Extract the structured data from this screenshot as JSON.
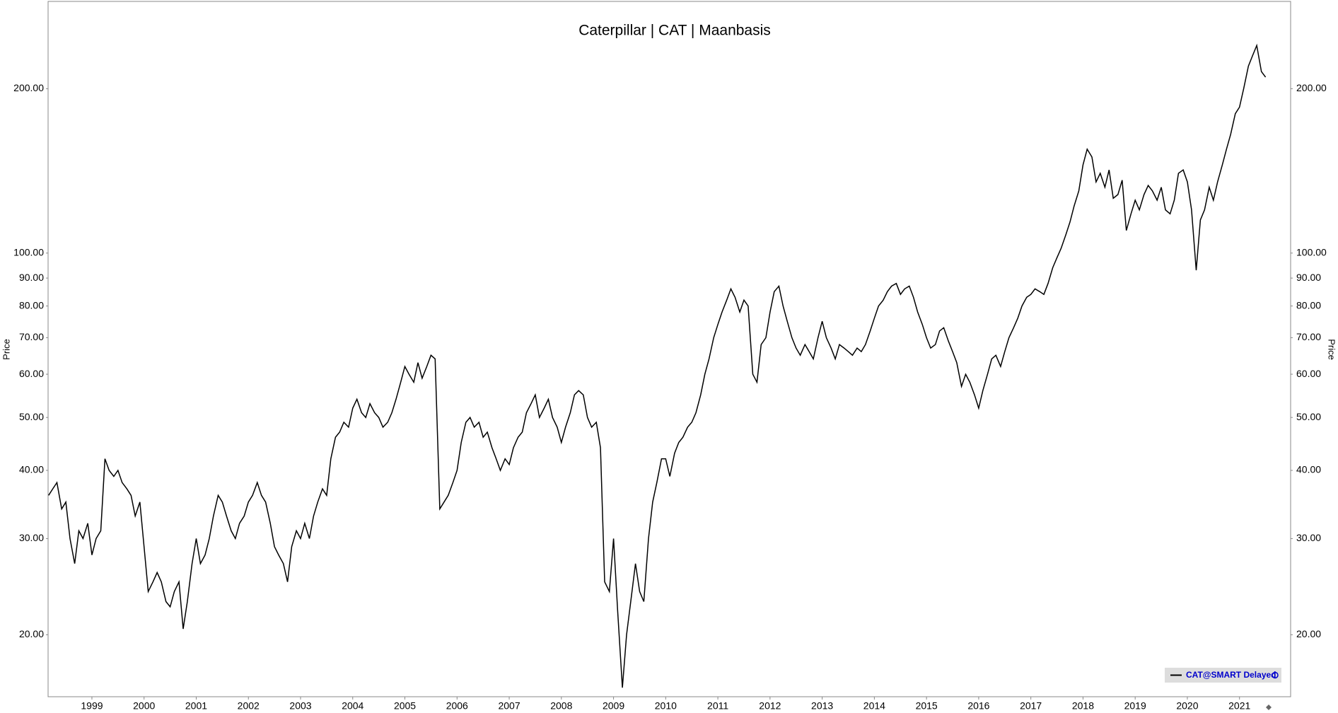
{
  "chart_data": {
    "type": "line",
    "title": "Caterpillar | CAT | Maanbasis",
    "ylabel": "Price",
    "y2label": "Price",
    "log_y": true,
    "grid": false,
    "legend": "lower right",
    "xlim": [
      1998.16,
      2021.98
    ],
    "xticks": [
      1999,
      2000,
      2001,
      2002,
      2003,
      2004,
      2005,
      2006,
      2007,
      2008,
      2009,
      2010,
      2011,
      2012,
      2013,
      2014,
      2015,
      2016,
      2017,
      2018,
      2019,
      2020,
      2021
    ],
    "ylim": [
      15.4,
      289
    ],
    "yticks": [
      {
        "value": 20,
        "label": "20.00"
      },
      {
        "value": 30,
        "label": "30.00"
      },
      {
        "value": 40,
        "label": "40.00"
      },
      {
        "value": 50,
        "label": "50.00"
      },
      {
        "value": 60,
        "label": "60.00"
      },
      {
        "value": 70,
        "label": "70.00"
      },
      {
        "value": 80,
        "label": "80.00"
      },
      {
        "value": 90,
        "label": "90.00"
      },
      {
        "value": 100,
        "label": "100.00"
      },
      {
        "value": 200,
        "label": "200.00"
      }
    ],
    "x": [
      1998.17,
      1998.25,
      1998.33,
      1998.42,
      1998.5,
      1998.58,
      1998.67,
      1998.75,
      1998.83,
      1998.92,
      1999,
      1999.08,
      1999.17,
      1999.25,
      1999.33,
      1999.42,
      1999.5,
      1999.58,
      1999.67,
      1999.75,
      1999.83,
      1999.92,
      2000,
      2000.08,
      2000.17,
      2000.25,
      2000.33,
      2000.42,
      2000.5,
      2000.58,
      2000.67,
      2000.75,
      2000.83,
      2000.92,
      2001,
      2001.08,
      2001.17,
      2001.25,
      2001.33,
      2001.42,
      2001.5,
      2001.58,
      2001.67,
      2001.75,
      2001.83,
      2001.92,
      2002,
      2002.08,
      2002.17,
      2002.25,
      2002.33,
      2002.42,
      2002.5,
      2002.58,
      2002.67,
      2002.75,
      2002.83,
      2002.92,
      2003,
      2003.08,
      2003.17,
      2003.25,
      2003.33,
      2003.42,
      2003.5,
      2003.58,
      2003.67,
      2003.75,
      2003.83,
      2003.92,
      2004,
      2004.08,
      2004.17,
      2004.25,
      2004.33,
      2004.42,
      2004.5,
      2004.58,
      2004.67,
      2004.75,
      2004.83,
      2004.92,
      2005,
      2005.08,
      2005.17,
      2005.25,
      2005.33,
      2005.42,
      2005.5,
      2005.58,
      2005.67,
      2005.75,
      2005.83,
      2005.92,
      2006,
      2006.08,
      2006.17,
      2006.25,
      2006.33,
      2006.42,
      2006.5,
      2006.58,
      2006.67,
      2006.75,
      2006.83,
      2006.92,
      2007,
      2007.08,
      2007.17,
      2007.25,
      2007.33,
      2007.42,
      2007.5,
      2007.58,
      2007.67,
      2007.75,
      2007.83,
      2007.92,
      2008,
      2008.08,
      2008.17,
      2008.25,
      2008.33,
      2008.42,
      2008.5,
      2008.58,
      2008.67,
      2008.75,
      2008.83,
      2008.92,
      2009,
      2009.08,
      2009.17,
      2009.25,
      2009.33,
      2009.42,
      2009.5,
      2009.58,
      2009.67,
      2009.75,
      2009.83,
      2009.92,
      2010,
      2010.08,
      2010.17,
      2010.25,
      2010.33,
      2010.42,
      2010.5,
      2010.58,
      2010.67,
      2010.75,
      2010.83,
      2010.92,
      2011,
      2011.08,
      2011.17,
      2011.25,
      2011.33,
      2011.42,
      2011.5,
      2011.58,
      2011.67,
      2011.75,
      2011.83,
      2011.92,
      2012,
      2012.08,
      2012.17,
      2012.25,
      2012.33,
      2012.42,
      2012.5,
      2012.58,
      2012.67,
      2012.75,
      2012.83,
      2012.92,
      2013,
      2013.08,
      2013.17,
      2013.25,
      2013.33,
      2013.42,
      2013.5,
      2013.58,
      2013.67,
      2013.75,
      2013.83,
      2013.92,
      2014,
      2014.08,
      2014.17,
      2014.25,
      2014.33,
      2014.42,
      2014.5,
      2014.58,
      2014.67,
      2014.75,
      2014.83,
      2014.92,
      2015,
      2015.08,
      2015.17,
      2015.25,
      2015.33,
      2015.42,
      2015.5,
      2015.58,
      2015.67,
      2015.75,
      2015.83,
      2015.92,
      2016,
      2016.08,
      2016.17,
      2016.25,
      2016.33,
      2016.42,
      2016.5,
      2016.58,
      2016.67,
      2016.75,
      2016.83,
      2016.92,
      2017,
      2017.08,
      2017.17,
      2017.25,
      2017.33,
      2017.42,
      2017.5,
      2017.58,
      2017.67,
      2017.75,
      2017.83,
      2017.92,
      2018,
      2018.08,
      2018.17,
      2018.25,
      2018.33,
      2018.42,
      2018.5,
      2018.58,
      2018.67,
      2018.75,
      2018.83,
      2018.92,
      2019,
      2019.08,
      2019.17,
      2019.25,
      2019.33,
      2019.42,
      2019.5,
      2019.58,
      2019.67,
      2019.75,
      2019.83,
      2019.92,
      2020,
      2020.08,
      2020.17,
      2020.25,
      2020.33,
      2020.42,
      2020.5,
      2020.58,
      2020.67,
      2020.75,
      2020.83,
      2020.92,
      2021,
      2021.08,
      2021.17,
      2021.25,
      2021.33,
      2021.42,
      2021.5
    ],
    "series": [
      {
        "name": "CAT@SMART Delayed",
        "color": "#000000",
        "values": [
          36,
          37,
          38,
          34,
          35,
          30,
          27,
          31,
          30,
          32,
          28,
          30,
          31,
          42,
          40,
          39,
          40,
          38,
          37,
          36,
          33,
          35,
          29,
          24,
          25,
          26,
          25,
          23,
          22.5,
          24,
          25,
          20.5,
          23,
          27,
          30,
          27,
          28,
          30,
          33,
          36,
          35,
          33,
          31,
          30,
          32,
          33,
          35,
          36,
          38,
          36,
          35,
          32,
          29,
          28,
          27,
          25,
          29,
          31,
          30,
          32,
          30,
          33,
          35,
          37,
          36,
          42,
          46,
          47,
          49,
          48,
          52,
          54,
          51,
          50,
          53,
          51,
          50,
          48,
          49,
          51,
          54,
          58,
          62,
          60,
          58,
          63,
          59,
          62,
          65,
          64,
          34,
          35,
          36,
          38,
          40,
          45,
          49,
          50,
          48,
          49,
          46,
          47,
          44,
          42,
          40,
          42,
          41,
          44,
          46,
          47,
          51,
          53,
          55,
          50,
          52,
          54,
          50,
          48,
          45,
          48,
          51,
          55,
          56,
          55,
          50,
          48,
          49,
          44,
          25,
          24,
          30,
          22,
          16,
          20,
          23,
          27,
          24,
          23,
          30,
          35,
          38,
          42,
          42,
          39,
          43,
          45,
          46,
          48,
          49,
          51,
          55,
          60,
          64,
          70,
          74,
          78,
          82,
          86,
          83,
          78,
          82,
          80,
          60,
          58,
          68,
          70,
          78,
          85,
          87,
          80,
          75,
          70,
          67,
          65,
          68,
          66,
          64,
          70,
          75,
          70,
          67,
          64,
          68,
          67,
          66,
          65,
          67,
          66,
          68,
          72,
          76,
          80,
          82,
          85,
          87,
          88,
          84,
          86,
          87,
          83,
          78,
          74,
          70,
          67,
          68,
          72,
          73,
          69,
          66,
          63,
          57,
          60,
          58,
          55,
          52,
          56,
          60,
          64,
          65,
          62,
          66,
          70,
          73,
          76,
          80,
          83,
          84,
          86,
          85,
          84,
          88,
          94,
          98,
          102,
          108,
          114,
          122,
          130,
          145,
          155,
          150,
          135,
          140,
          132,
          142,
          126,
          128,
          136,
          110,
          118,
          125,
          120,
          128,
          133,
          130,
          125,
          132,
          120,
          118,
          125,
          140,
          142,
          135,
          120,
          93,
          115,
          120,
          132,
          125,
          135,
          145,
          155,
          165,
          180,
          185,
          200,
          220,
          230,
          240,
          215,
          210
        ]
      }
    ]
  }
}
